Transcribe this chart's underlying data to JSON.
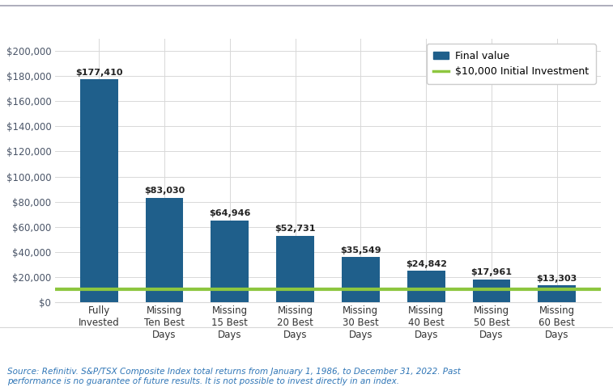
{
  "categories": [
    "Fully\nInvested",
    "Missing\nTen Best\nDays",
    "Missing\n15 Best\nDays",
    "Missing\n20 Best\nDays",
    "Missing\n30 Best\nDays",
    "Missing\n40 Best\nDays",
    "Missing\n50 Best\nDays",
    "Missing\n60 Best\nDays"
  ],
  "values": [
    177410,
    83030,
    64946,
    52731,
    35549,
    24842,
    17961,
    13303
  ],
  "labels": [
    "$177,410",
    "$83,030",
    "$64,946",
    "$52,731",
    "$35,549",
    "$24,842",
    "$17,961",
    "$13,303"
  ],
  "bar_color": "#1f5f8b",
  "initial_investment": 10000,
  "initial_line_color": "#8dc63f",
  "ylim": [
    0,
    210000
  ],
  "yticks": [
    0,
    20000,
    40000,
    60000,
    80000,
    100000,
    120000,
    140000,
    160000,
    180000,
    200000
  ],
  "legend_bar_label": "Final value",
  "legend_line_label": "$10,000 Initial Investment",
  "source_text": "Source: Refinitiv. S&P/TSX Composite Index total returns from January 1, 1986, to December 31, 2022. Past\nperformance is no guarantee of future results. It is not possible to invest directly in an index.",
  "background_color": "#ffffff",
  "grid_color": "#d8d8d8",
  "source_color": "#2e75b6",
  "bar_label_fontsize": 8.0,
  "tick_fontsize": 8.5,
  "source_fontsize": 7.5,
  "legend_fontsize": 9.0,
  "top_border_color": "#a0a0b0",
  "ytick_color": "#4a5568"
}
